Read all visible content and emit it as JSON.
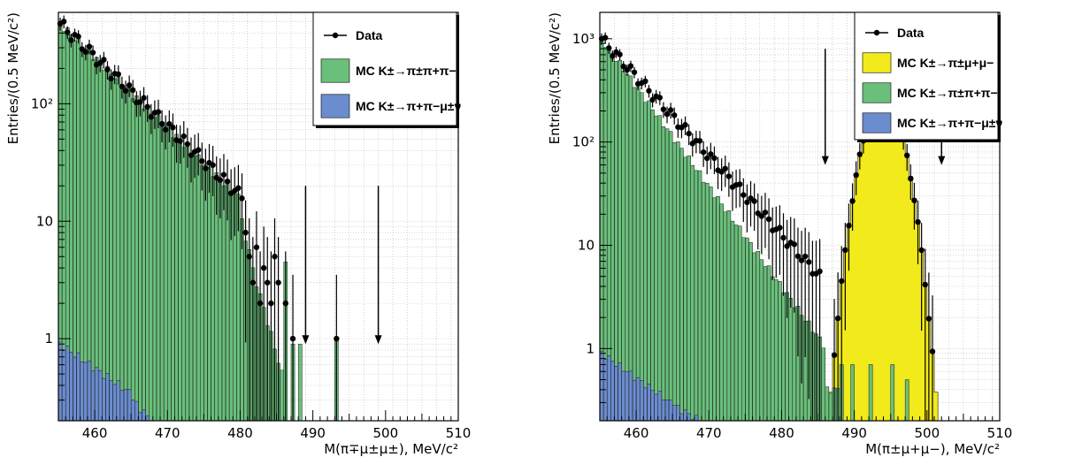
{
  "colors": {
    "green": "#6abf7b",
    "blue": "#6b8ccf",
    "yellow": "#f2ea1a",
    "black": "#000000"
  },
  "chart_data": [
    {
      "type": "histogram",
      "xlabel": "M(π∓μ±μ±), MeV/c²",
      "ylabel": "Entries/(0.5 MeV/c²)",
      "xlim": [
        455,
        510
      ],
      "ylim": [
        0.2,
        600
      ],
      "yscale": "log",
      "grid": true,
      "legend_position": "top-right",
      "xticks": [
        "460",
        "470",
        "480",
        "490",
        "500",
        "510"
      ],
      "yticks": [
        {
          "v": 1,
          "label": "1"
        },
        {
          "v": 10,
          "label": "10"
        },
        {
          "v": 100,
          "label": "10²"
        }
      ],
      "legend": [
        {
          "kind": "marker",
          "label": "Data"
        },
        {
          "kind": "fill",
          "color_key": "green",
          "label": "MC K±→π±π+π−"
        },
        {
          "kind": "fill",
          "color_key": "blue",
          "label": "MC K±→π+π−μ±ν"
        }
      ],
      "arrows_x": [
        489,
        499
      ],
      "arrow_y_range": [
        0.9,
        20
      ],
      "series": [
        {
          "name": "MC K±→π±π+π−",
          "color_key": "green",
          "type": "stacked_hist",
          "segments": [
            [
              455,
              480,
              480,
              16
            ],
            [
              480,
              482,
              10,
              4
            ],
            [
              482,
              486,
              3,
              0.5
            ]
          ],
          "bins": [
            [
              486,
              4.5
            ],
            [
              487,
              0.9
            ],
            [
              488,
              0.9
            ],
            [
              493,
              1.0
            ]
          ]
        },
        {
          "name": "MC K±→π+π−μ±ν",
          "color_key": "blue",
          "type": "stacked_hist",
          "segments": [
            [
              455,
              465,
              0.9,
              0.35
            ],
            [
              465,
              468,
              0.3,
              0.2
            ]
          ],
          "bins": []
        },
        {
          "name": "Data",
          "type": "points",
          "start": 455.25,
          "end": 480,
          "y_start": 480,
          "y_end": 16,
          "noise": 0.12,
          "extra": [
            [
              480.75,
              8
            ],
            [
              481.25,
              5
            ],
            [
              481.75,
              3
            ],
            [
              482.25,
              6
            ],
            [
              482.75,
              2
            ],
            [
              483.25,
              4
            ],
            [
              483.75,
              3
            ],
            [
              484.25,
              2
            ],
            [
              484.75,
              5
            ],
            [
              485.25,
              3
            ],
            [
              486.25,
              2
            ],
            [
              487.25,
              1
            ],
            [
              493.25,
              1
            ]
          ]
        }
      ]
    },
    {
      "type": "histogram",
      "xlabel": "M(π±μ+μ−), MeV/c²",
      "ylabel": "Entries/(0.5 MeV/c²)",
      "xlim": [
        455,
        510
      ],
      "ylim": [
        0.2,
        1800
      ],
      "yscale": "log",
      "grid": true,
      "legend_position": "top-right",
      "xticks": [
        "460",
        "470",
        "480",
        "490",
        "500",
        "510"
      ],
      "yticks": [
        {
          "v": 1,
          "label": "1"
        },
        {
          "v": 10,
          "label": "10"
        },
        {
          "v": 100,
          "label": "10²"
        },
        {
          "v": 1000,
          "label": "10³"
        }
      ],
      "legend": [
        {
          "kind": "marker",
          "label": "Data"
        },
        {
          "kind": "fill",
          "color_key": "yellow",
          "label": "MC K±→π±μ+μ−"
        },
        {
          "kind": "fill",
          "color_key": "green",
          "label": "MC K±→π±π+π−"
        },
        {
          "kind": "fill",
          "color_key": "blue",
          "label": "MC K±→π+π−μ±ν"
        }
      ],
      "arrows_x": [
        486,
        502
      ],
      "arrow_y_range": [
        60,
        800
      ],
      "series": [
        {
          "name": "MC K±→π±π+π−",
          "color_key": "green",
          "type": "stacked_hist",
          "segments": [
            [
              455,
              486,
              1000,
              1.1
            ],
            [
              486,
              488,
              0.4,
              0.4
            ]
          ],
          "bins": [
            [
              488,
              0.7
            ],
            [
              489.5,
              0.7
            ],
            [
              492,
              0.7
            ],
            [
              495,
              0.7
            ],
            [
              497,
              0.5
            ]
          ]
        },
        {
          "name": "MC K±→π+π−μ±ν",
          "color_key": "blue",
          "type": "stacked_hist",
          "segments": [
            [
              455,
              465,
              0.9,
              0.3
            ],
            [
              465,
              469,
              0.28,
              0.2
            ]
          ],
          "bins": []
        },
        {
          "name": "MC K±→π±μ+μ−",
          "color_key": "yellow",
          "type": "gauss",
          "mean": 494,
          "sigma": 2.0,
          "peak": 270,
          "range": [
            485.5,
            506
          ]
        },
        {
          "name": "Data",
          "type": "points",
          "start": 455.25,
          "end": 485,
          "y_start": 1000,
          "y_end": 5,
          "noise": 0.12,
          "extra": [],
          "gauss_points": true
        }
      ]
    }
  ]
}
